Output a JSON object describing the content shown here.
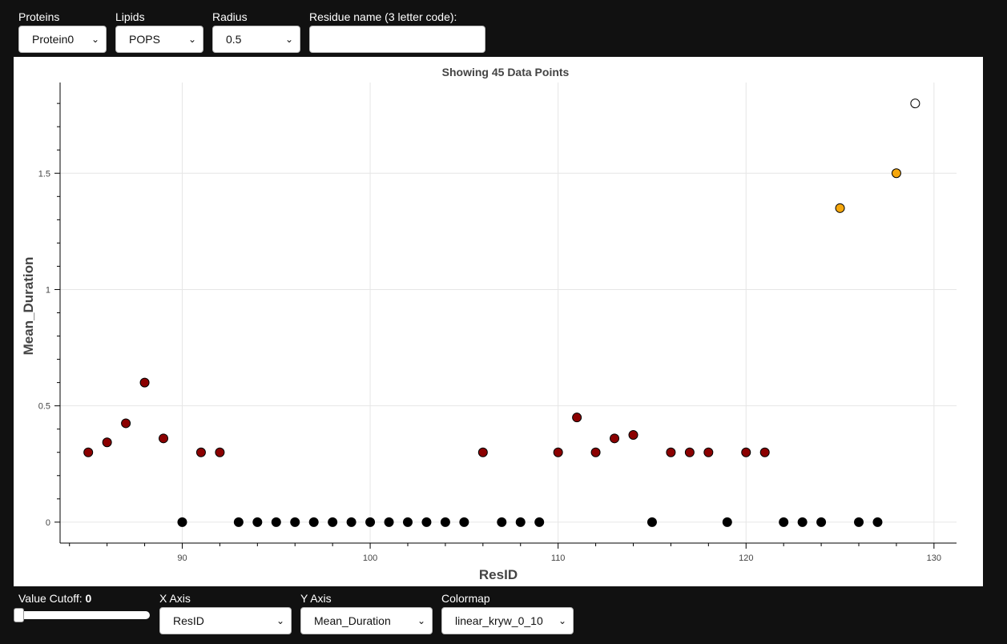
{
  "top_controls": {
    "proteins": {
      "label": "Proteins",
      "value": "Protein0"
    },
    "lipids": {
      "label": "Lipids",
      "value": "POPS"
    },
    "radius": {
      "label": "Radius",
      "value": "0.5"
    },
    "residue": {
      "label": "Residue name (3 letter code):",
      "value": ""
    }
  },
  "bottom_controls": {
    "cutoff": {
      "label": "Value Cutoff: ",
      "value": "0",
      "fraction": 0
    },
    "x_axis": {
      "label": "X Axis",
      "value": "ResID"
    },
    "y_axis": {
      "label": "Y Axis",
      "value": "Mean_Duration"
    },
    "colormap": {
      "label": "Colormap",
      "value": "linear_kryw_0_10"
    }
  },
  "icons": {
    "chevron": "chevron-down-icon"
  },
  "chart_data": {
    "type": "scatter",
    "title": "Showing 45 Data Points",
    "xlabel": "ResID",
    "ylabel": "Mean_Duration",
    "xlim": [
      83.5,
      131.2
    ],
    "ylim": [
      -0.09,
      1.89
    ],
    "x_ticks": [
      90,
      100,
      110,
      120,
      130
    ],
    "x_tick_labels": [
      "90",
      "100",
      "110",
      "120",
      "130"
    ],
    "y_ticks": [
      0,
      0.5,
      1,
      1.5
    ],
    "y_tick_labels": [
      "0",
      "0.5",
      "1",
      "1.5"
    ],
    "grid": true,
    "points": [
      {
        "x": 85,
        "y": 0.3,
        "color": "#8b0000"
      },
      {
        "x": 86,
        "y": 0.343,
        "color": "#8b0000"
      },
      {
        "x": 87,
        "y": 0.425,
        "color": "#8b0000"
      },
      {
        "x": 88,
        "y": 0.6,
        "color": "#8b0000"
      },
      {
        "x": 89,
        "y": 0.36,
        "color": "#8b0000"
      },
      {
        "x": 90,
        "y": 0,
        "color": "#000000"
      },
      {
        "x": 91,
        "y": 0.3,
        "color": "#8b0000"
      },
      {
        "x": 92,
        "y": 0.3,
        "color": "#8b0000"
      },
      {
        "x": 93,
        "y": 0,
        "color": "#000000"
      },
      {
        "x": 94,
        "y": 0,
        "color": "#000000"
      },
      {
        "x": 95,
        "y": 0,
        "color": "#000000"
      },
      {
        "x": 96,
        "y": 0,
        "color": "#000000"
      },
      {
        "x": 97,
        "y": 0,
        "color": "#000000"
      },
      {
        "x": 98,
        "y": 0,
        "color": "#000000"
      },
      {
        "x": 99,
        "y": 0,
        "color": "#000000"
      },
      {
        "x": 100,
        "y": 0,
        "color": "#000000"
      },
      {
        "x": 101,
        "y": 0,
        "color": "#000000"
      },
      {
        "x": 102,
        "y": 0,
        "color": "#000000"
      },
      {
        "x": 103,
        "y": 0,
        "color": "#000000"
      },
      {
        "x": 104,
        "y": 0,
        "color": "#000000"
      },
      {
        "x": 105,
        "y": 0,
        "color": "#000000"
      },
      {
        "x": 106,
        "y": 0.3,
        "color": "#8b0000"
      },
      {
        "x": 107,
        "y": 0,
        "color": "#000000"
      },
      {
        "x": 108,
        "y": 0,
        "color": "#000000"
      },
      {
        "x": 109,
        "y": 0,
        "color": "#000000"
      },
      {
        "x": 110,
        "y": 0.3,
        "color": "#8b0000"
      },
      {
        "x": 111,
        "y": 0.45,
        "color": "#8b0000"
      },
      {
        "x": 112,
        "y": 0.3,
        "color": "#8b0000"
      },
      {
        "x": 113,
        "y": 0.36,
        "color": "#8b0000"
      },
      {
        "x": 114,
        "y": 0.375,
        "color": "#8b0000"
      },
      {
        "x": 115,
        "y": 0,
        "color": "#000000"
      },
      {
        "x": 116,
        "y": 0.3,
        "color": "#8b0000"
      },
      {
        "x": 117,
        "y": 0.3,
        "color": "#8b0000"
      },
      {
        "x": 118,
        "y": 0.3,
        "color": "#8b0000"
      },
      {
        "x": 119,
        "y": 0,
        "color": "#000000"
      },
      {
        "x": 120,
        "y": 0.3,
        "color": "#8b0000"
      },
      {
        "x": 121,
        "y": 0.3,
        "color": "#8b0000"
      },
      {
        "x": 122,
        "y": 0,
        "color": "#000000"
      },
      {
        "x": 123,
        "y": 0,
        "color": "#000000"
      },
      {
        "x": 124,
        "y": 0,
        "color": "#000000"
      },
      {
        "x": 125,
        "y": 1.35,
        "color": "#f5a70d"
      },
      {
        "x": 126,
        "y": 0,
        "color": "#000000"
      },
      {
        "x": 127,
        "y": 0,
        "color": "#000000"
      },
      {
        "x": 128,
        "y": 1.5,
        "color": "#f5a70d"
      },
      {
        "x": 129,
        "y": 1.8,
        "color": "#ffffff"
      }
    ]
  }
}
